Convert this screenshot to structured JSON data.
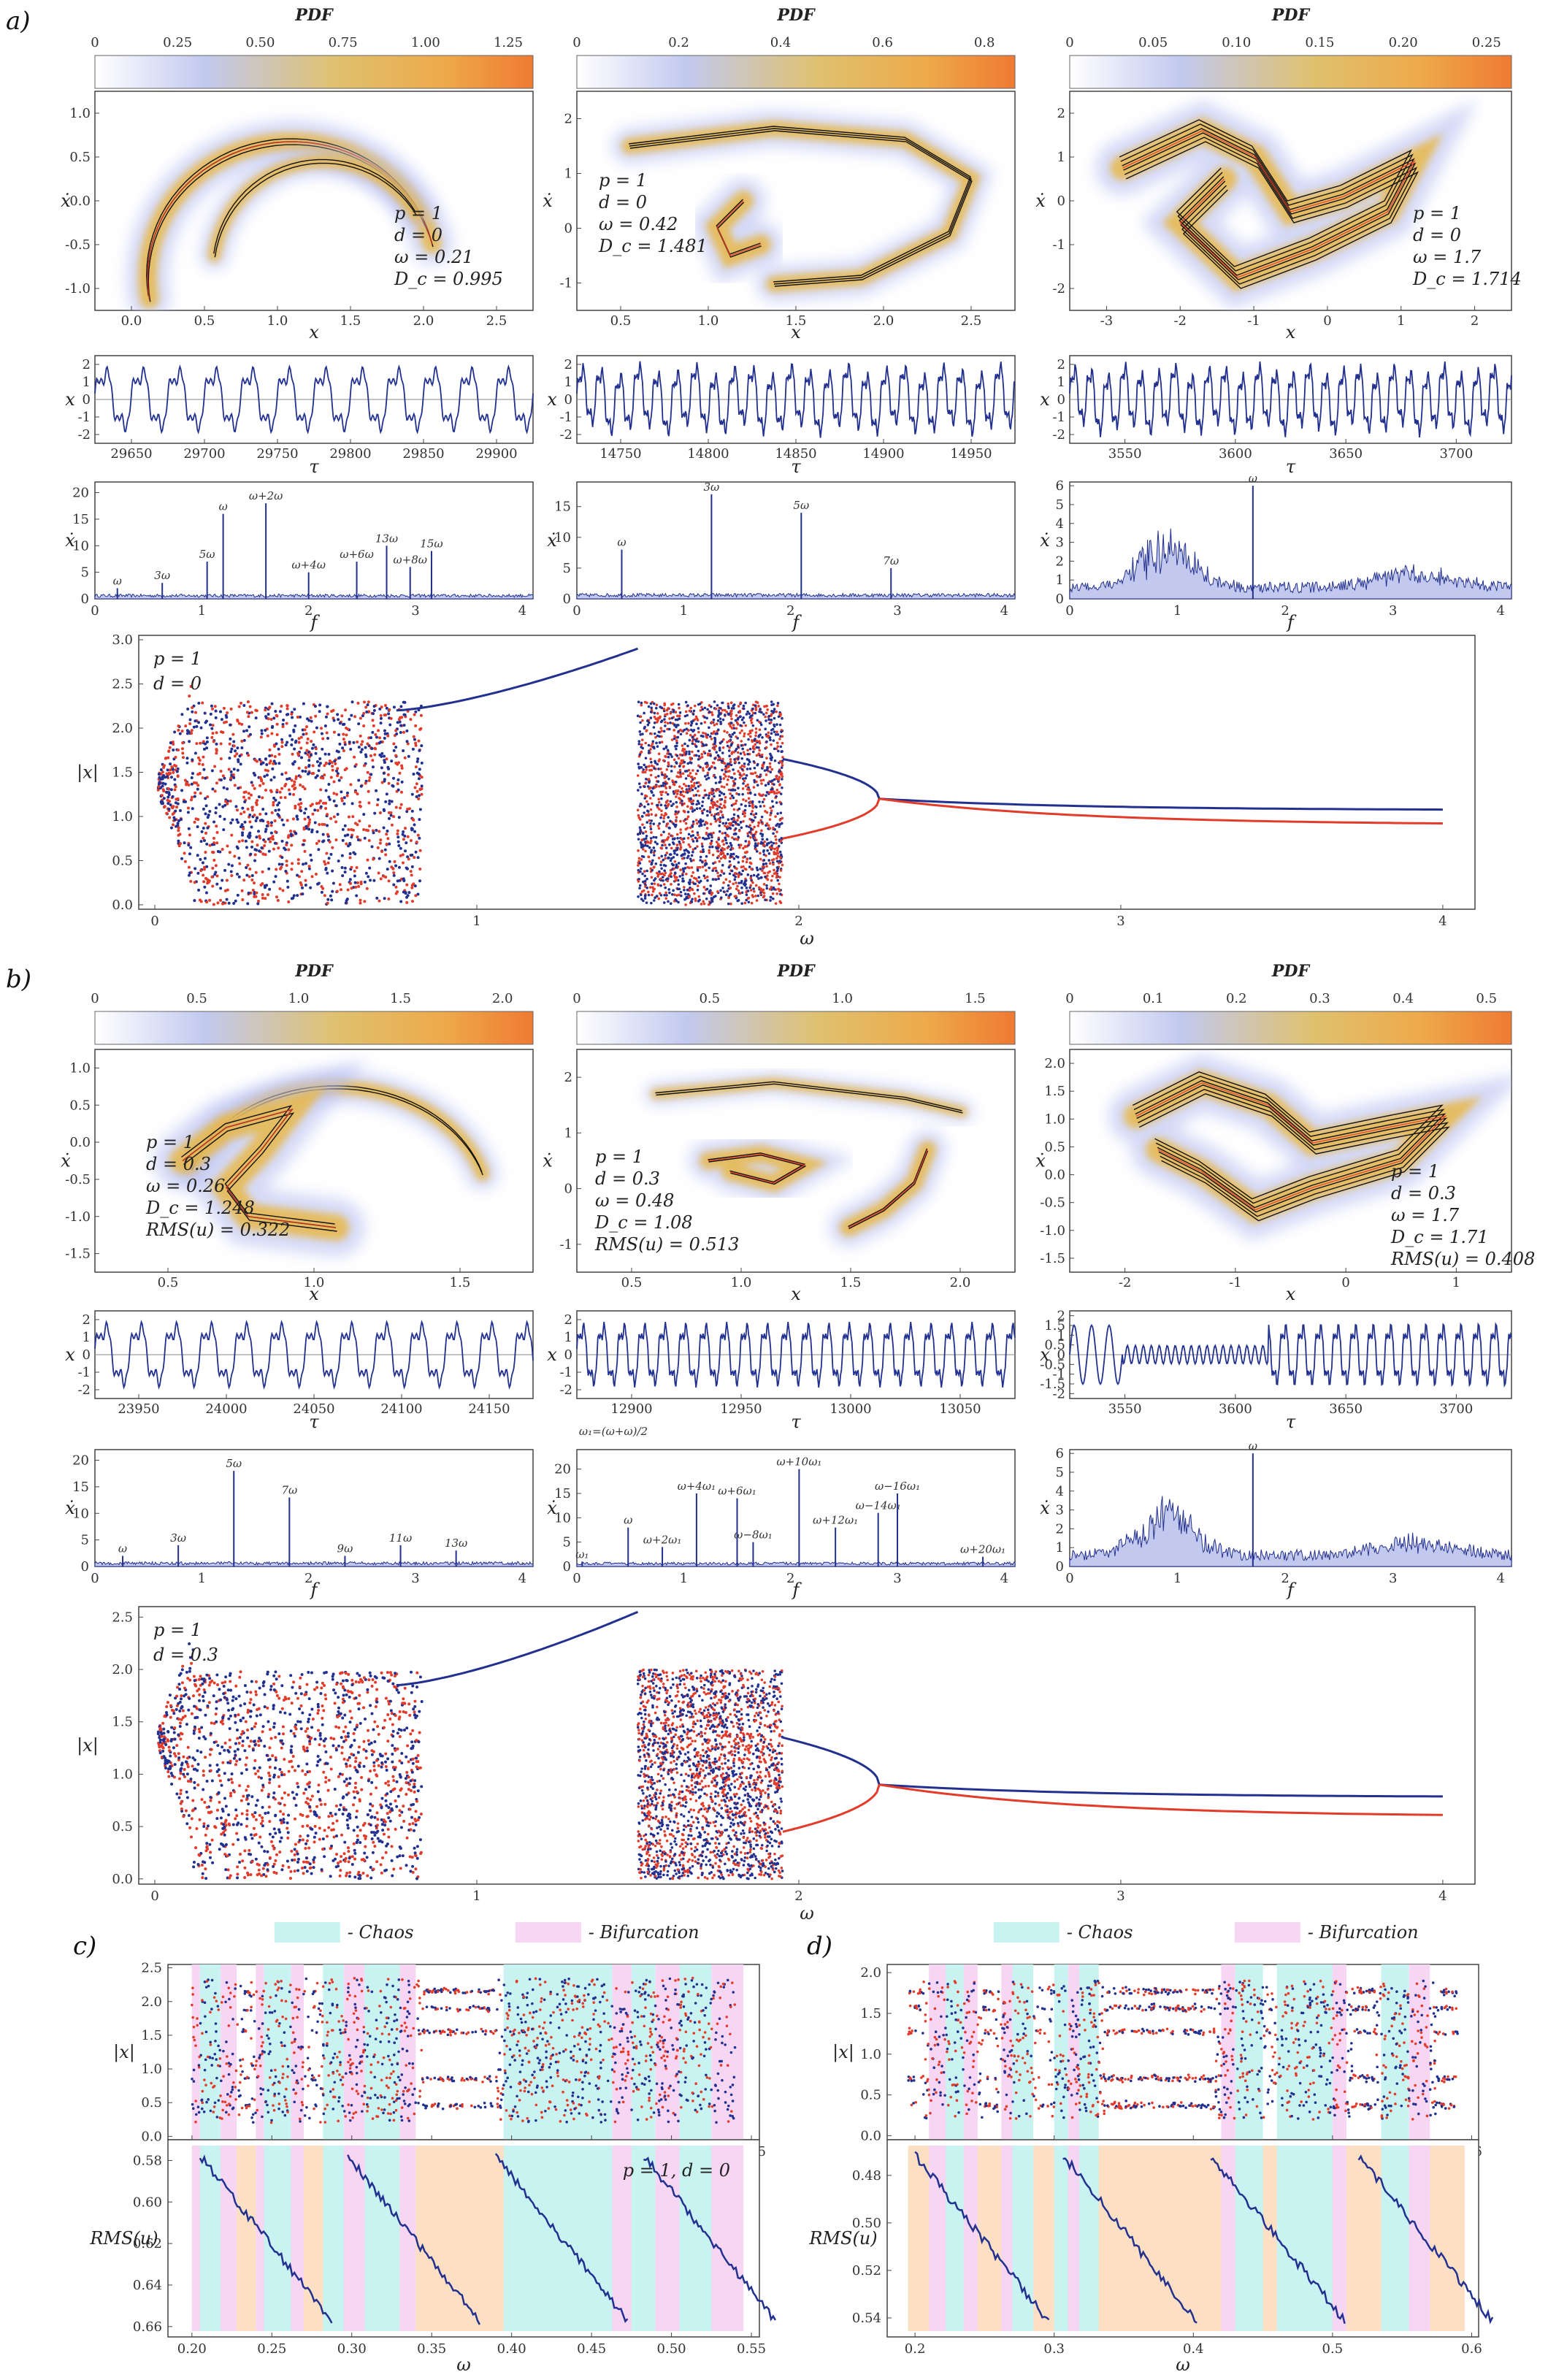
{
  "panel_labels": [
    "a)",
    "b)",
    "c)",
    "d)"
  ],
  "colors": {
    "blue": "#22308f",
    "red": "#e33b2a",
    "orange": "#f08a3c",
    "gold": "#e8b84a",
    "chaos": "#c8f3f0",
    "bifurcation": "#f7d6f3",
    "rms_fill": "#fde0c4"
  },
  "chart_data": [
    {
      "id": "a-attractor-1",
      "type": "scatter",
      "title": "PDF",
      "colorbar_ticks": [
        "0",
        "0.25",
        "0.50",
        "0.75",
        "1.00",
        "1.25"
      ],
      "xlabel": "x",
      "ylabel": "ẋ",
      "xticks": [
        "0.0",
        "0.5",
        "1.0",
        "1.5",
        "2.0",
        "2.5"
      ],
      "yticks": [
        "1.0",
        "0.5",
        "0.0",
        "-0.5",
        "-1.0"
      ],
      "xlim": [
        -0.2,
        2.6
      ],
      "ylim": [
        -1.3,
        1.4
      ],
      "annotations": [
        "p = 1",
        "d = 0",
        "ω = 0.21",
        "D_c = 0.995"
      ]
    },
    {
      "id": "a-attractor-2",
      "type": "scatter",
      "title": "PDF",
      "colorbar_ticks": [
        "0",
        "0.2",
        "0.4",
        "0.6",
        "0.8"
      ],
      "xlabel": "x",
      "ylabel": "ẋ",
      "xticks": [
        "0.5",
        "1.0",
        "1.5",
        "2.0",
        "2.5"
      ],
      "yticks": [
        "2",
        "1",
        "0",
        "-1"
      ],
      "xlim": [
        0.2,
        2.8
      ],
      "ylim": [
        -1.6,
        2.6
      ],
      "annotations": [
        "p = 1",
        "d = 0",
        "ω = 0.42",
        "D_c = 1.481"
      ]
    },
    {
      "id": "a-attractor-3",
      "type": "scatter",
      "title": "PDF",
      "colorbar_ticks": [
        "0",
        "0.05",
        "0.10",
        "0.15",
        "0.20",
        "0.25"
      ],
      "xlabel": "x",
      "ylabel": "ẋ",
      "xticks": [
        "-3",
        "-2",
        "-1",
        "0",
        "1",
        "2"
      ],
      "yticks": [
        "2",
        "1",
        "0",
        "-1",
        "-2"
      ],
      "xlim": [
        -3,
        2.4
      ],
      "ylim": [
        -2.6,
        2.6
      ],
      "annotations": [
        "p = 1",
        "d = 0",
        "ω = 1.7",
        "D_c = 1.714"
      ]
    },
    {
      "id": "a-time-1",
      "type": "line",
      "xlabel": "τ",
      "ylabel": "x",
      "xticks": [
        "29650",
        "29700",
        "29750",
        "29800",
        "29850",
        "29900"
      ],
      "yticks": [
        "2",
        "1",
        "0",
        "-1",
        "-2"
      ]
    },
    {
      "id": "a-time-2",
      "type": "line",
      "xlabel": "τ",
      "ylabel": "x",
      "xticks": [
        "14750",
        "14800",
        "14850",
        "14900",
        "14950"
      ],
      "yticks": [
        "2",
        "1",
        "0",
        "-1",
        "-2"
      ]
    },
    {
      "id": "a-time-3",
      "type": "line",
      "xlabel": "τ",
      "ylabel": "x",
      "xticks": [
        "3550",
        "3600",
        "3650",
        "3700"
      ],
      "yticks": [
        "2",
        "1",
        "0",
        "-1",
        "-2"
      ]
    },
    {
      "id": "a-spectrum-1",
      "type": "line",
      "xlabel": "f",
      "ylabel": "ẋ",
      "xticks": [
        "0",
        "1",
        "2",
        "3",
        "4"
      ],
      "yticks": [
        "20",
        "15",
        "10",
        "5",
        "0"
      ],
      "peaks": [
        [
          "ω",
          0.21,
          2
        ],
        [
          "3ω",
          0.63,
          3
        ],
        [
          "5ω",
          1.05,
          7
        ],
        [
          "ω",
          1.2,
          16
        ],
        [
          "ω+2ω",
          1.6,
          18
        ],
        [
          "ω+4ω",
          2.0,
          5
        ],
        [
          "ω+6ω",
          2.45,
          7
        ],
        [
          "13ω",
          2.73,
          10
        ],
        [
          "ω+8ω",
          2.95,
          6
        ],
        [
          "15ω",
          3.15,
          9
        ]
      ]
    },
    {
      "id": "a-spectrum-2",
      "type": "line",
      "xlabel": "f",
      "ylabel": "ẋ",
      "xticks": [
        "0",
        "1",
        "2",
        "3",
        "4"
      ],
      "yticks": [
        "15",
        "10",
        "5",
        "0"
      ],
      "peaks": [
        [
          "ω",
          0.42,
          8
        ],
        [
          "3ω",
          1.26,
          17
        ],
        [
          "5ω",
          2.1,
          14
        ],
        [
          "7ω",
          2.94,
          5
        ]
      ]
    },
    {
      "id": "a-spectrum-3",
      "type": "line",
      "xlabel": "f",
      "ylabel": "ẋ",
      "xticks": [
        "0",
        "1",
        "2",
        "3",
        "4"
      ],
      "yticks": [
        "6",
        "5",
        "4",
        "3",
        "2",
        "1",
        "0"
      ],
      "peaks": [
        [
          "ω",
          1.7,
          6
        ]
      ]
    },
    {
      "id": "a-bifurcation",
      "type": "scatter",
      "xlabel": "ω",
      "ylabel": "|x|",
      "xticks": [
        "0",
        "1",
        "2",
        "3",
        "4"
      ],
      "yticks": [
        "3.0",
        "2.5",
        "2.0",
        "1.5",
        "1.0",
        "0.5",
        "0.0"
      ],
      "xlim": [
        -0.05,
        4.1
      ],
      "ylim": [
        -0.05,
        3.05
      ],
      "annotations": [
        "p = 1",
        "d = 0"
      ]
    },
    {
      "id": "b-attractor-1",
      "type": "scatter",
      "title": "PDF",
      "colorbar_ticks": [
        "0",
        "0.5",
        "1.0",
        "1.5",
        "2.0"
      ],
      "xlabel": "x",
      "ylabel": "ẋ",
      "xticks": [
        "0.5",
        "1.0",
        "1.5"
      ],
      "yticks": [
        "1.0",
        "0.5",
        "0.0",
        "-0.5",
        "-1.0",
        "-1.5"
      ],
      "xlim": [
        0.0,
        1.75
      ],
      "ylim": [
        -1.65,
        1.25
      ],
      "annotations": [
        "p = 1",
        "d = 0.3",
        "ω = 0.26",
        "D_c = 1.248",
        "RMS(u) = 0.322"
      ]
    },
    {
      "id": "b-attractor-2",
      "type": "scatter",
      "title": "PDF",
      "colorbar_ticks": [
        "0",
        "0.5",
        "1.0",
        "1.5"
      ],
      "xlabel": "x",
      "ylabel": "ẋ",
      "xticks": [
        "0.5",
        "1.0",
        "1.5",
        "2.0"
      ],
      "yticks": [
        "2",
        "1",
        "0",
        "-1"
      ],
      "xlim": [
        0.25,
        2.25
      ],
      "ylim": [
        -1.5,
        2.6
      ],
      "annotations": [
        "p = 1",
        "d = 0.3",
        "ω = 0.48",
        "D_c = 1.08",
        "RMS(u) = 0.513"
      ]
    },
    {
      "id": "b-attractor-3",
      "type": "scatter",
      "title": "PDF",
      "colorbar_ticks": [
        "0",
        "0.1",
        "0.2",
        "0.3",
        "0.4",
        "0.5"
      ],
      "xlabel": "x",
      "ylabel": "ẋ",
      "xticks": [
        "-2",
        "-1",
        "0",
        "1"
      ],
      "yticks": [
        "2.0",
        "1.5",
        "1.0",
        "0.5",
        "0.0",
        "-0.5",
        "-1.0",
        "-1.5"
      ],
      "xlim": [
        -2.6,
        1.8
      ],
      "ylim": [
        -1.8,
        2.1
      ],
      "annotations": [
        "p = 1",
        "d = 0.3",
        "ω = 1.7",
        "D_c = 1.71",
        "RMS(u) = 0.408"
      ]
    },
    {
      "id": "b-time-1",
      "type": "line",
      "xlabel": "τ",
      "ylabel": "x",
      "xticks": [
        "23950",
        "24000",
        "24050",
        "24100",
        "24150"
      ],
      "yticks": [
        "2",
        "1",
        "0",
        "-1",
        "-2"
      ]
    },
    {
      "id": "b-time-2",
      "type": "line",
      "xlabel": "τ",
      "ylabel": "x",
      "xticks": [
        "12900",
        "12950",
        "13000",
        "13050"
      ],
      "yticks": [
        "2",
        "1",
        "0",
        "-1",
        "-2"
      ]
    },
    {
      "id": "b-time-3",
      "type": "line",
      "xlabel": "τ",
      "ylabel": "x",
      "xticks": [
        "3550",
        "3600",
        "3650",
        "3700"
      ],
      "yticks": [
        "2",
        "1.5",
        "1",
        "0.5",
        "0",
        "-0.5",
        "-1",
        "-1.5",
        "-2"
      ]
    },
    {
      "id": "b-spectrum-1",
      "type": "line",
      "xlabel": "f",
      "ylabel": "ẋ",
      "xticks": [
        "0",
        "1",
        "2",
        "3",
        "4"
      ],
      "yticks": [
        "20",
        "15",
        "10",
        "5",
        "0"
      ],
      "peaks": [
        [
          "ω",
          0.26,
          2
        ],
        [
          "3ω",
          0.78,
          4
        ],
        [
          "5ω",
          1.3,
          18
        ],
        [
          "7ω",
          1.82,
          13
        ],
        [
          "9ω",
          2.34,
          2
        ],
        [
          "11ω",
          2.86,
          4
        ],
        [
          "13ω",
          3.38,
          3
        ]
      ]
    },
    {
      "id": "b-spectrum-2",
      "type": "line",
      "xlabel": "f",
      "ylabel": "ẋ",
      "xticks": [
        "0",
        "1",
        "2",
        "3",
        "4"
      ],
      "yticks": [
        "20",
        "15",
        "10",
        "5",
        "0"
      ],
      "peaks": [
        [
          "ω₁",
          0.05,
          1
        ],
        [
          "ω",
          0.48,
          8
        ],
        [
          "ω+2ω₁",
          0.8,
          4
        ],
        [
          "ω+4ω₁",
          1.12,
          15
        ],
        [
          "ω+6ω₁",
          1.5,
          14
        ],
        [
          "ω−8ω₁",
          1.65,
          5
        ],
        [
          "ω+10ω₁",
          2.08,
          20
        ],
        [
          "ω+12ω₁",
          2.42,
          8
        ],
        [
          "ω−14ω₁",
          2.82,
          11
        ],
        [
          "ω−16ω₁",
          3.0,
          15
        ],
        [
          "ω+20ω₁",
          3.8,
          2
        ]
      ],
      "formula": "ω₁=(ω+ω)/2"
    },
    {
      "id": "b-spectrum-3",
      "type": "line",
      "xlabel": "f",
      "ylabel": "ẋ",
      "xticks": [
        "0",
        "1",
        "2",
        "3",
        "4"
      ],
      "yticks": [
        "6",
        "5",
        "4",
        "3",
        "2",
        "1",
        "0"
      ],
      "peaks": [
        [
          "ω",
          1.7,
          6
        ]
      ]
    },
    {
      "id": "b-bifurcation",
      "type": "scatter",
      "xlabel": "ω",
      "ylabel": "|x|",
      "xticks": [
        "0",
        "1",
        "2",
        "3",
        "4"
      ],
      "yticks": [
        "2.5",
        "2.0",
        "1.5",
        "1.0",
        "0.5",
        "0.0"
      ],
      "xlim": [
        -0.05,
        4.1
      ],
      "ylim": [
        -0.05,
        2.6
      ],
      "annotations": [
        "p = 1",
        "d = 0.3"
      ]
    },
    {
      "id": "c-bifurcation",
      "type": "scatter",
      "xlabel": "ω",
      "ylabel": "|x|",
      "xticks": [
        "0.20",
        "0.25",
        "0.30",
        "0.35",
        "0.40",
        "0.45",
        "0.50",
        "0.55"
      ],
      "yticks": [
        "2.5",
        "2.0",
        "1.5",
        "1.0",
        "0.5",
        "0.0"
      ],
      "xlim": [
        0.185,
        0.555
      ],
      "ylim": [
        -0.05,
        2.55
      ],
      "legend": [
        "- Chaos",
        "- Bifurcation"
      ],
      "chaos_intervals": [
        [
          0.205,
          0.218
        ],
        [
          0.245,
          0.262
        ],
        [
          0.282,
          0.295
        ],
        [
          0.308,
          0.33
        ],
        [
          0.395,
          0.463
        ],
        [
          0.475,
          0.49
        ],
        [
          0.505,
          0.525
        ]
      ],
      "bifurcation_intervals": [
        [
          0.2,
          0.205
        ],
        [
          0.218,
          0.228
        ],
        [
          0.24,
          0.245
        ],
        [
          0.262,
          0.27
        ],
        [
          0.295,
          0.308
        ],
        [
          0.33,
          0.34
        ],
        [
          0.463,
          0.475
        ],
        [
          0.49,
          0.505
        ],
        [
          0.525,
          0.545
        ]
      ]
    },
    {
      "id": "c-rms",
      "type": "line",
      "xlabel": "ω",
      "ylabel": "RMS(u)",
      "xticks": [
        "0.20",
        "0.25",
        "0.30",
        "0.35",
        "0.40",
        "0.45",
        "0.50",
        "0.55"
      ],
      "yticks": [
        "0.58",
        "0.60",
        "0.62",
        "0.64",
        "0.66"
      ],
      "xlim": [
        0.185,
        0.555
      ],
      "ylim": [
        0.57,
        0.665
      ],
      "annotations": [
        "p = 1, d = 0"
      ]
    },
    {
      "id": "d-bifurcation",
      "type": "scatter",
      "xlabel": "ω",
      "ylabel": "|x|",
      "xticks": [
        "0.2",
        "0.3",
        "0.4",
        "0.5",
        "0.6"
      ],
      "yticks": [
        "2.0",
        "1.5",
        "1.0",
        "0.5",
        "0.0"
      ],
      "xlim": [
        0.18,
        0.605
      ],
      "ylim": [
        -0.05,
        2.1
      ],
      "legend": [
        "- Chaos",
        "- Bifurcation"
      ],
      "chaos_intervals": [
        [
          0.222,
          0.235
        ],
        [
          0.27,
          0.285
        ],
        [
          0.3,
          0.31
        ],
        [
          0.318,
          0.332
        ],
        [
          0.43,
          0.45
        ],
        [
          0.46,
          0.5
        ],
        [
          0.535,
          0.555
        ]
      ],
      "bifurcation_intervals": [
        [
          0.21,
          0.222
        ],
        [
          0.235,
          0.245
        ],
        [
          0.262,
          0.27
        ],
        [
          0.31,
          0.318
        ],
        [
          0.42,
          0.43
        ],
        [
          0.5,
          0.51
        ],
        [
          0.555,
          0.57
        ]
      ]
    },
    {
      "id": "d-rms",
      "type": "line",
      "xlabel": "ω",
      "ylabel": "RMS(u)",
      "xticks": [
        "0.2",
        "0.3",
        "0.4",
        "0.5",
        "0.6"
      ],
      "yticks": [
        "0.48",
        "0.50",
        "0.52",
        "0.54"
      ],
      "xlim": [
        0.18,
        0.605
      ],
      "ylim": [
        0.465,
        0.548
      ]
    }
  ]
}
